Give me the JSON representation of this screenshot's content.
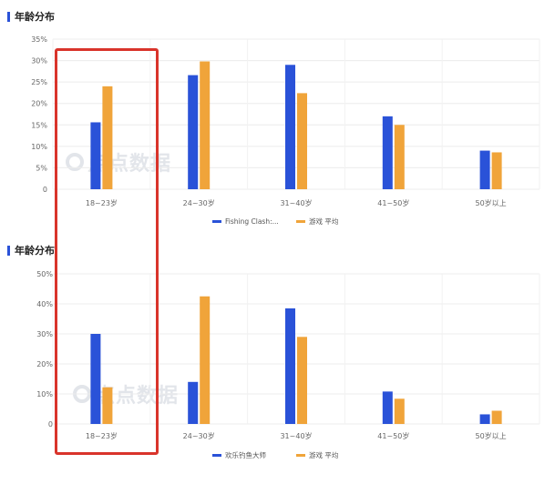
{
  "charts": [
    {
      "title": "年龄分布",
      "watermark": "点点数据",
      "chart_data": {
        "type": "bar",
        "categories": [
          "18~23岁",
          "24~30岁",
          "31~40岁",
          "41~50岁",
          "50岁以上"
        ],
        "series": [
          {
            "name": "Fishing Clash:...",
            "color": "#2a52d8",
            "values": [
              15.6,
              26.6,
              29.0,
              17.0,
              9.0
            ]
          },
          {
            "name": "游戏 平均",
            "color": "#f0a43a",
            "values": [
              24.0,
              29.8,
              22.4,
              15.0,
              8.6
            ]
          }
        ],
        "ylim": [
          0,
          35
        ],
        "yticks": [
          "35%",
          "30%",
          "25%",
          "20%",
          "15%",
          "10%",
          "5%",
          "0"
        ],
        "ytick_values": [
          35,
          30,
          25,
          20,
          15,
          10,
          5,
          0
        ],
        "grid": true,
        "legend": "bottom-center"
      }
    },
    {
      "title": "年龄分布",
      "watermark": "点点数据",
      "chart_data": {
        "type": "bar",
        "categories": [
          "18~23岁",
          "24~30岁",
          "31~40岁",
          "41~50岁",
          "50岁以上"
        ],
        "series": [
          {
            "name": "欢乐钓鱼大师",
            "color": "#2a52d8",
            "values": [
              30.0,
              14.0,
              38.5,
              10.8,
              3.2
            ]
          },
          {
            "name": "游戏 平均",
            "color": "#f0a43a",
            "values": [
              12.2,
              42.5,
              29.0,
              8.4,
              4.4
            ]
          }
        ],
        "ylim": [
          0,
          50
        ],
        "yticks": [
          "50%",
          "40%",
          "30%",
          "20%",
          "10%",
          "0"
        ],
        "ytick_values": [
          50,
          40,
          30,
          20,
          10,
          0
        ],
        "grid": true,
        "legend": "bottom-center"
      }
    }
  ]
}
